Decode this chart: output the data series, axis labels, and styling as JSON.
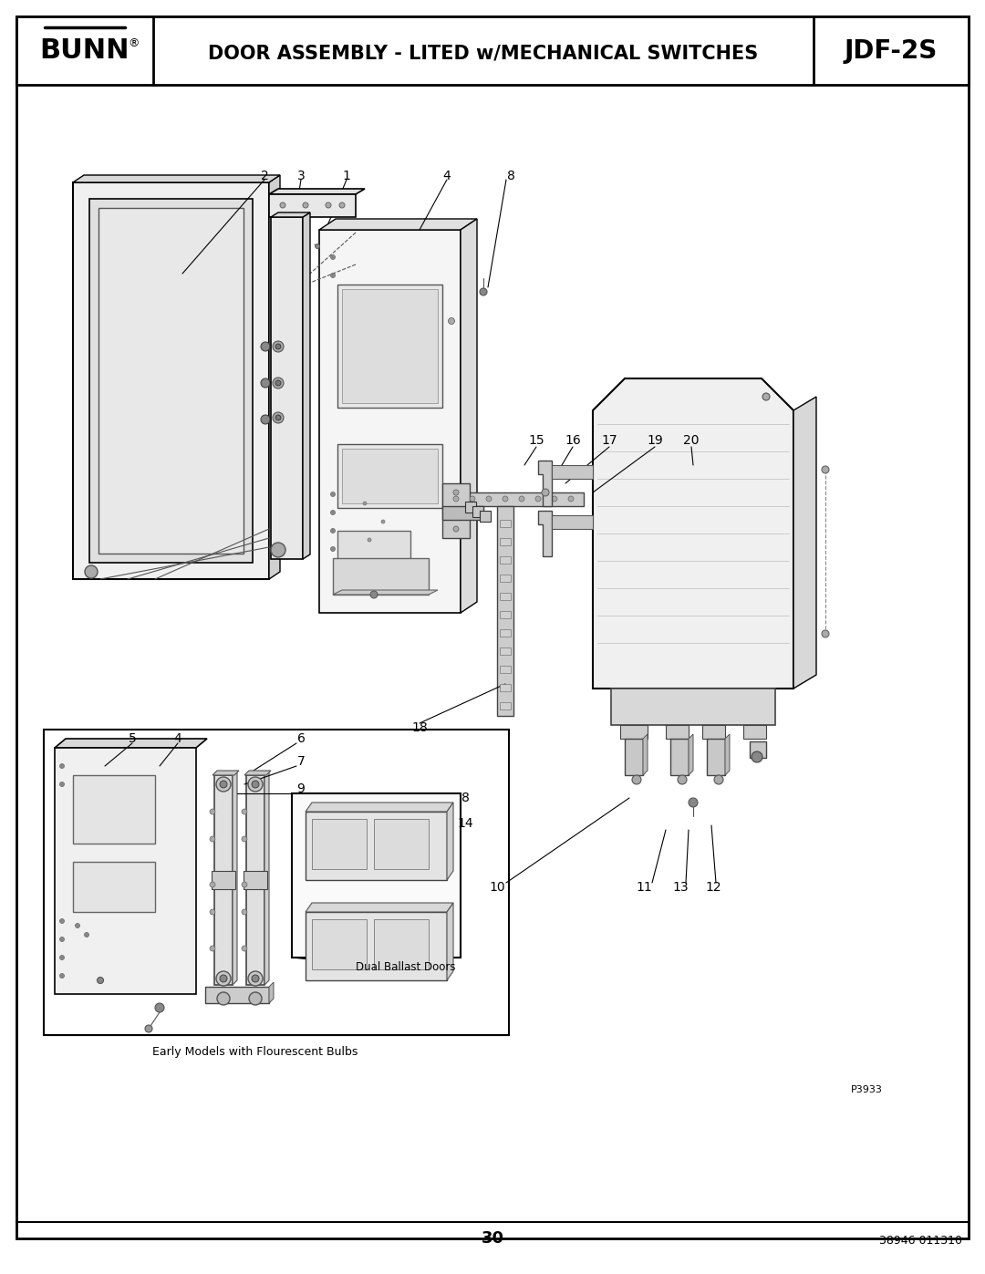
{
  "title_center": "DOOR ASSEMBLY - LITED w/MECHANICAL SWITCHES",
  "title_left": "BUNN",
  "title_right": "JDF-2S",
  "page_number": "30",
  "doc_number": "38946 011310",
  "part_number": "P3933",
  "background_color": "#ffffff",
  "border_color": "#000000",
  "text_color": "#000000",
  "figsize": [
    10.8,
    13.97
  ],
  "dpi": 100,
  "inset_label1": "Dual Ballast Doors",
  "inset_label2": "Early Models with Flourescent Bulbs"
}
